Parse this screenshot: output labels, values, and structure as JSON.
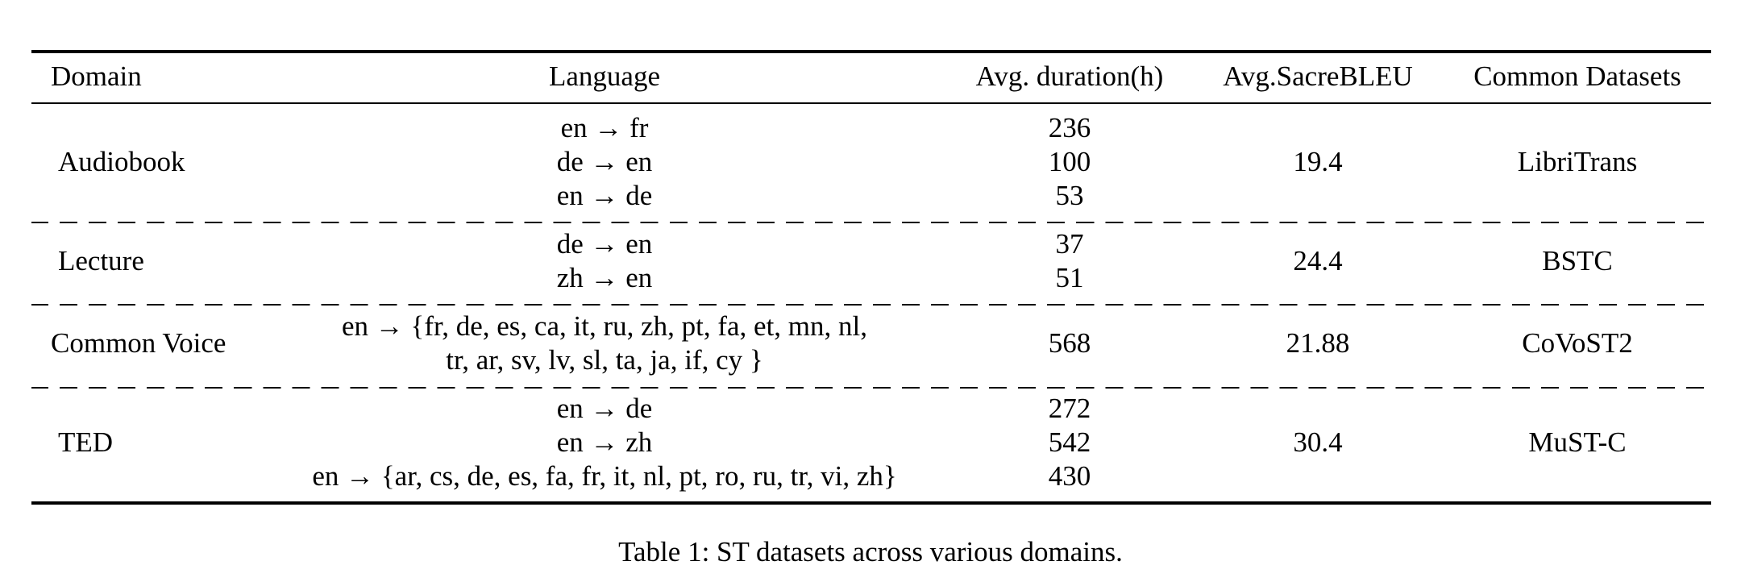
{
  "table": {
    "headers": {
      "domain": "Domain",
      "language": "Language",
      "duration": "Avg. duration(h)",
      "bleu": "Avg.SacreBLEU",
      "datasets": "Common Datasets"
    },
    "rows": [
      {
        "domain": "Audiobook",
        "languages": [
          "en → fr",
          "de → en",
          "en → de"
        ],
        "durations": [
          "236",
          "100",
          "53"
        ],
        "bleu": "19.4",
        "dataset": "LibriTrans"
      },
      {
        "domain": "Lecture",
        "languages": [
          "de → en",
          "zh → en"
        ],
        "durations": [
          "37",
          "51"
        ],
        "bleu": "24.4",
        "dataset": "BSTC"
      },
      {
        "domain": "Common Voice",
        "languages": [
          "en → {fr, de, es, ca, it, ru, zh, pt, fa, et, mn, nl,",
          "tr, ar, sv, lv, sl, ta, ja, if, cy }"
        ],
        "durations": [
          "568"
        ],
        "bleu": "21.88",
        "dataset": "CoVoST2"
      },
      {
        "domain": "TED",
        "languages": [
          "en → de",
          "en → zh",
          "en → {ar, cs, de, es, fa, fr, it, nl, pt, ro, ru, tr, vi, zh}"
        ],
        "durations": [
          "272",
          "542",
          "430"
        ],
        "bleu": "30.4",
        "dataset": "MuST-C"
      }
    ]
  },
  "caption": "Table 1: ST datasets across various domains."
}
